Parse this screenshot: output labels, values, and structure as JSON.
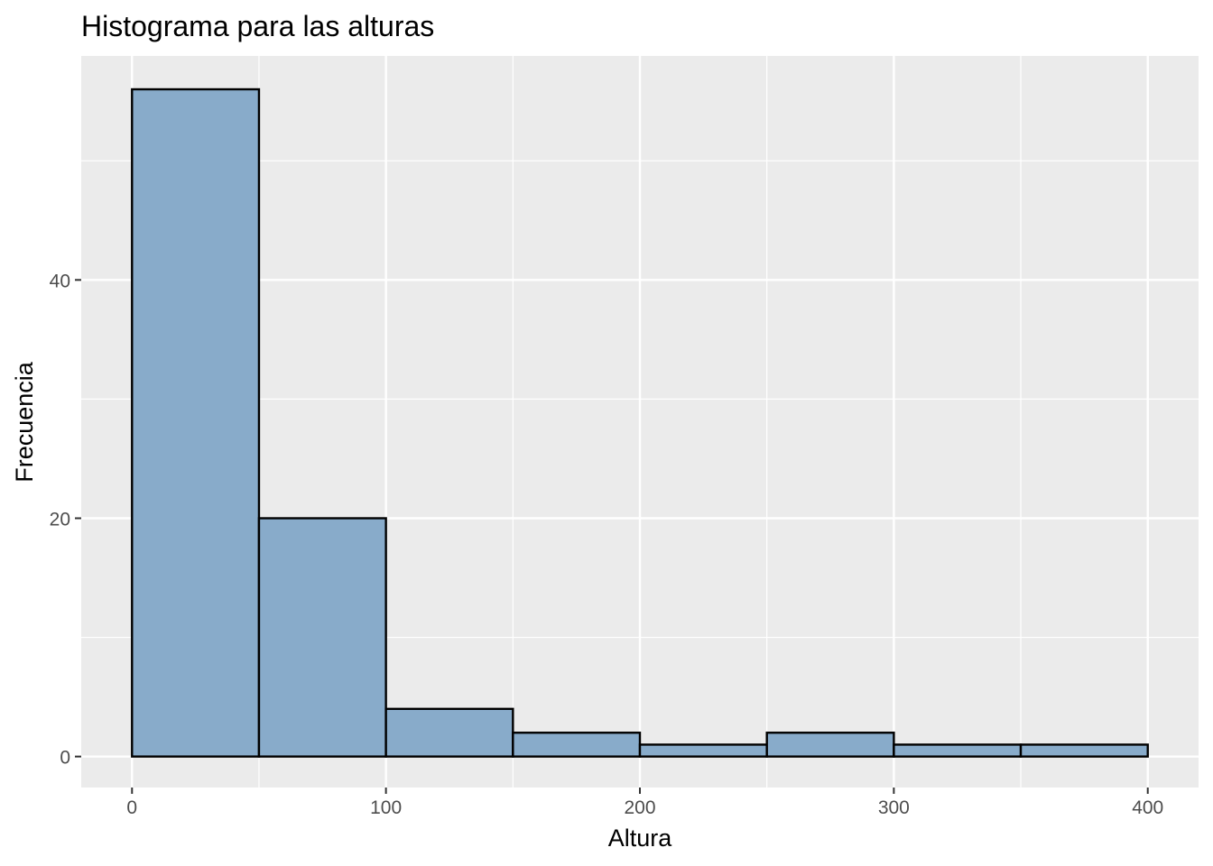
{
  "chart_data": {
    "type": "bar",
    "title": "Histograma para las alturas",
    "xlabel": "Altura",
    "ylabel": "Frecuencia",
    "bins": [
      {
        "x0": 0,
        "x1": 50,
        "count": 56
      },
      {
        "x0": 50,
        "x1": 100,
        "count": 20
      },
      {
        "x0": 100,
        "x1": 150,
        "count": 4
      },
      {
        "x0": 150,
        "x1": 200,
        "count": 2
      },
      {
        "x0": 200,
        "x1": 250,
        "count": 1
      },
      {
        "x0": 250,
        "x1": 300,
        "count": 2
      },
      {
        "x0": 300,
        "x1": 350,
        "count": 1
      },
      {
        "x0": 350,
        "x1": 400,
        "count": 1
      }
    ],
    "xlim": [
      -20,
      420
    ],
    "ylim": [
      -2.6,
      58.8
    ],
    "x_ticks": [
      0,
      100,
      200,
      300,
      400
    ],
    "x_tick_labels": [
      "0",
      "100",
      "200",
      "300",
      "400"
    ],
    "x_minor_ticks": [
      50,
      150,
      250,
      350
    ],
    "y_ticks": [
      0,
      20,
      40
    ],
    "y_tick_labels": [
      "0",
      "20",
      "40"
    ],
    "y_minor_ticks": [
      10,
      30,
      50
    ],
    "grid": true,
    "legend": "none",
    "colors": {
      "bar_fill": "#88abca",
      "bar_stroke": "#000000",
      "panel_background": "#ebebeb",
      "grid": "#ffffff",
      "tick_text": "#4d4d4d"
    }
  }
}
